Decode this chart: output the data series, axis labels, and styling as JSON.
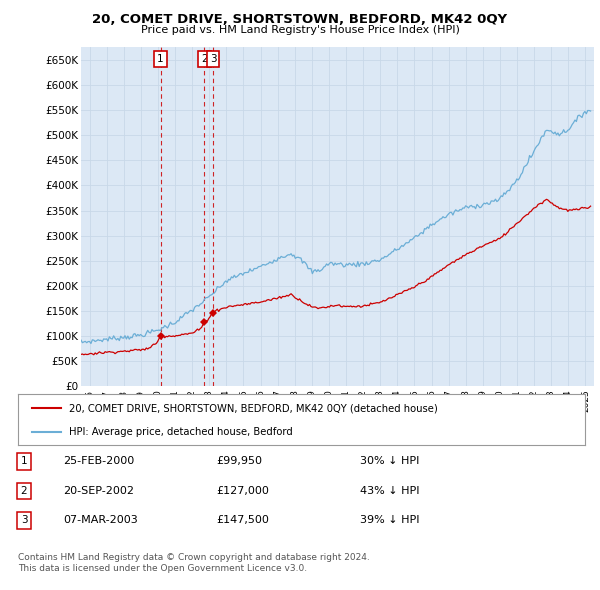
{
  "title": "20, COMET DRIVE, SHORTSTOWN, BEDFORD, MK42 0QY",
  "subtitle": "Price paid vs. HM Land Registry's House Price Index (HPI)",
  "ylim": [
    0,
    675000
  ],
  "xlim_start": 1995.5,
  "xlim_end": 2025.5,
  "transactions": [
    {
      "label": "1",
      "date": "25-FEB-2000",
      "price": 99950,
      "x": 2000.15,
      "pct": "30%",
      "dir": "↓"
    },
    {
      "label": "2",
      "date": "20-SEP-2002",
      "price": 127000,
      "x": 2002.72,
      "pct": "43%",
      "dir": "↓"
    },
    {
      "label": "3",
      "date": "07-MAR-2003",
      "price": 147500,
      "x": 2003.22,
      "pct": "39%",
      "dir": "↓"
    }
  ],
  "hpi_color": "#6baed6",
  "price_color": "#cc0000",
  "vline_color": "#cc0000",
  "grid_color": "#c8d8e8",
  "chart_bg": "#dce8f5",
  "background_color": "#ffffff",
  "legend_label_price": "20, COMET DRIVE, SHORTSTOWN, BEDFORD, MK42 0QY (detached house)",
  "legend_label_hpi": "HPI: Average price, detached house, Bedford",
  "footer1": "Contains HM Land Registry data © Crown copyright and database right 2024.",
  "footer2": "This data is licensed under the Open Government Licence v3.0.",
  "table_rows": [
    [
      "1",
      "25-FEB-2000",
      "£99,950",
      "30% ↓ HPI"
    ],
    [
      "2",
      "20-SEP-2002",
      "£127,000",
      "43% ↓ HPI"
    ],
    [
      "3",
      "07-MAR-2003",
      "£147,500",
      "39% ↓ HPI"
    ]
  ],
  "hpi_anchors": [
    [
      1995.5,
      88000
    ],
    [
      1996.0,
      89500
    ],
    [
      1997.0,
      94000
    ],
    [
      1998.0,
      98000
    ],
    [
      1999.0,
      102000
    ],
    [
      2000.0,
      112000
    ],
    [
      2001.0,
      128000
    ],
    [
      2002.0,
      152000
    ],
    [
      2003.0,
      178000
    ],
    [
      2004.0,
      210000
    ],
    [
      2005.0,
      225000
    ],
    [
      2006.0,
      238000
    ],
    [
      2007.0,
      255000
    ],
    [
      2007.8,
      265000
    ],
    [
      2008.5,
      248000
    ],
    [
      2009.0,
      228000
    ],
    [
      2009.5,
      232000
    ],
    [
      2010.0,
      245000
    ],
    [
      2011.0,
      242000
    ],
    [
      2012.0,
      244000
    ],
    [
      2013.0,
      252000
    ],
    [
      2014.0,
      273000
    ],
    [
      2015.0,
      295000
    ],
    [
      2016.0,
      322000
    ],
    [
      2017.0,
      342000
    ],
    [
      2018.0,
      356000
    ],
    [
      2019.0,
      362000
    ],
    [
      2020.0,
      372000
    ],
    [
      2021.0,
      410000
    ],
    [
      2022.0,
      468000
    ],
    [
      2022.5,
      500000
    ],
    [
      2022.8,
      510000
    ],
    [
      2023.0,
      508000
    ],
    [
      2023.5,
      502000
    ],
    [
      2024.0,
      512000
    ],
    [
      2024.5,
      530000
    ],
    [
      2025.0,
      548000
    ],
    [
      2025.3,
      550000
    ]
  ],
  "price_anchors": [
    [
      1995.5,
      63000
    ],
    [
      1996.0,
      65000
    ],
    [
      1997.0,
      68000
    ],
    [
      1998.0,
      70000
    ],
    [
      1999.0,
      73000
    ],
    [
      1999.5,
      76000
    ],
    [
      2000.0,
      90000
    ],
    [
      2000.15,
      99950
    ],
    [
      2000.5,
      100500
    ],
    [
      2001.0,
      101000
    ],
    [
      2002.0,
      106000
    ],
    [
      2002.5,
      115000
    ],
    [
      2002.72,
      127000
    ],
    [
      2003.0,
      137000
    ],
    [
      2003.19,
      147500
    ],
    [
      2003.5,
      152000
    ],
    [
      2004.0,
      158000
    ],
    [
      2005.0,
      163000
    ],
    [
      2006.0,
      168000
    ],
    [
      2007.0,
      176000
    ],
    [
      2007.8,
      183000
    ],
    [
      2008.3,
      172000
    ],
    [
      2008.8,
      162000
    ],
    [
      2009.3,
      155000
    ],
    [
      2009.8,
      158000
    ],
    [
      2010.5,
      162000
    ],
    [
      2011.0,
      159000
    ],
    [
      2012.0,
      160000
    ],
    [
      2013.0,
      167000
    ],
    [
      2014.0,
      182000
    ],
    [
      2015.0,
      198000
    ],
    [
      2016.0,
      218000
    ],
    [
      2017.0,
      242000
    ],
    [
      2018.0,
      262000
    ],
    [
      2019.0,
      280000
    ],
    [
      2020.0,
      294000
    ],
    [
      2021.0,
      325000
    ],
    [
      2022.0,
      355000
    ],
    [
      2022.5,
      368000
    ],
    [
      2022.8,
      372000
    ],
    [
      2023.0,
      365000
    ],
    [
      2023.5,
      355000
    ],
    [
      2024.0,
      350000
    ],
    [
      2024.5,
      352000
    ],
    [
      2025.0,
      355000
    ],
    [
      2025.3,
      357000
    ]
  ]
}
